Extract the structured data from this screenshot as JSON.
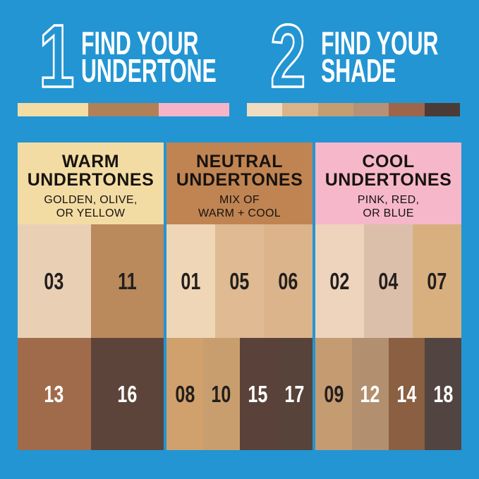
{
  "background": "#2395d3",
  "chart_data": {
    "type": "table",
    "title": "Find your undertone / Find your shade",
    "steps": [
      {
        "number": "1",
        "title_line1": "FIND YOUR",
        "title_line2": "UNDERTONE",
        "bar_colors": [
          "#f3dda5",
          "#b08058",
          "#f7b4c9"
        ]
      },
      {
        "number": "2",
        "title_line1": "FIND YOUR",
        "title_line2": "SHADE",
        "bar_colors": [
          "#f0ddc1",
          "#d9b48a",
          "#c59d73",
          "#b69177",
          "#9d6549",
          "#4a3b37"
        ]
      }
    ],
    "columns": [
      {
        "undertone": "WARM UNDERTONES",
        "description": "GOLDEN, OLIVE, OR YELLOW",
        "shades": [
          "03",
          "11",
          "13",
          "16"
        ]
      },
      {
        "undertone": "NEUTRAL UNDERTONES",
        "description": "MIX OF WARM + COOL",
        "shades": [
          "01",
          "05",
          "06",
          "08",
          "10",
          "15",
          "17"
        ]
      },
      {
        "undertone": "COOL UNDERTONES",
        "description": "PINK, RED, OR BLUE",
        "shades": [
          "02",
          "04",
          "07",
          "09",
          "12",
          "14",
          "18"
        ]
      }
    ]
  },
  "steps": [
    {
      "number": "1",
      "title_line1": "FIND YOUR",
      "title_line2": "UNDERTONE",
      "bar": [
        "#f3dda5",
        "#b08058",
        "#f7b4c9"
      ]
    },
    {
      "number": "2",
      "title_line1": "FIND YOUR",
      "title_line2": "SHADE",
      "bar": [
        "#f0ddc1",
        "#d9b48a",
        "#c59d73",
        "#b69177",
        "#9d6549",
        "#4a3b37"
      ]
    }
  ],
  "columns": [
    {
      "header": {
        "bg": "#f3dca4",
        "title_line1": "WARM",
        "title_line2": "UNDERTONES",
        "subtitle_line1": "GOLDEN, OLIVE,",
        "subtitle_line2": "OR YELLOW"
      },
      "mid_row": [
        {
          "label": "03",
          "bg": "#e9d0b5",
          "text": "#231f1d"
        },
        {
          "label": "11",
          "bg": "#ba895c",
          "text": "#231f1d"
        }
      ],
      "bottom_row": [
        {
          "label": "13",
          "bg": "#a06b4a",
          "text": "#ffffff"
        },
        {
          "label": "16",
          "bg": "#5d443a",
          "text": "#ffffff"
        }
      ]
    },
    {
      "header": {
        "bg": "#c08452",
        "title_line1": "NEUTRAL",
        "title_line2": "UNDERTONES",
        "subtitle_line1": "MIX OF",
        "subtitle_line2": "WARM + COOL"
      },
      "mid_row": [
        {
          "label": "01",
          "bg": "#eed6b7",
          "text": "#231f1d"
        },
        {
          "label": "05",
          "bg": "#dfba92",
          "text": "#231f1d"
        },
        {
          "label": "06",
          "bg": "#dbb48b",
          "text": "#231f1d"
        }
      ],
      "bottom_row": [
        {
          "label": "08",
          "bg": "#d0a16c",
          "text": "#231f1d"
        },
        {
          "label": "10",
          "bg": "#c99e6e",
          "text": "#231f1d"
        },
        {
          "label": "15",
          "bg": "#5a423b",
          "text": "#ffffff"
        },
        {
          "label": "17",
          "bg": "#574339",
          "text": "#ffffff"
        }
      ]
    },
    {
      "header": {
        "bg": "#f6b7ca",
        "title_line1": "COOL",
        "title_line2": "UNDERTONES",
        "subtitle_line1": "PINK, RED,",
        "subtitle_line2": "OR BLUE"
      },
      "mid_row": [
        {
          "label": "02",
          "bg": "#eed3bd",
          "text": "#231f1d"
        },
        {
          "label": "04",
          "bg": "#dcbfab",
          "text": "#231f1d"
        },
        {
          "label": "07",
          "bg": "#d8b080",
          "text": "#231f1d"
        }
      ],
      "bottom_row": [
        {
          "label": "09",
          "bg": "#c59b72",
          "text": "#231f1d"
        },
        {
          "label": "12",
          "bg": "#b28f6f",
          "text": "#ffffff"
        },
        {
          "label": "14",
          "bg": "#8a5f42",
          "text": "#ffffff"
        },
        {
          "label": "18",
          "bg": "#524440",
          "text": "#ffffff"
        }
      ]
    }
  ]
}
